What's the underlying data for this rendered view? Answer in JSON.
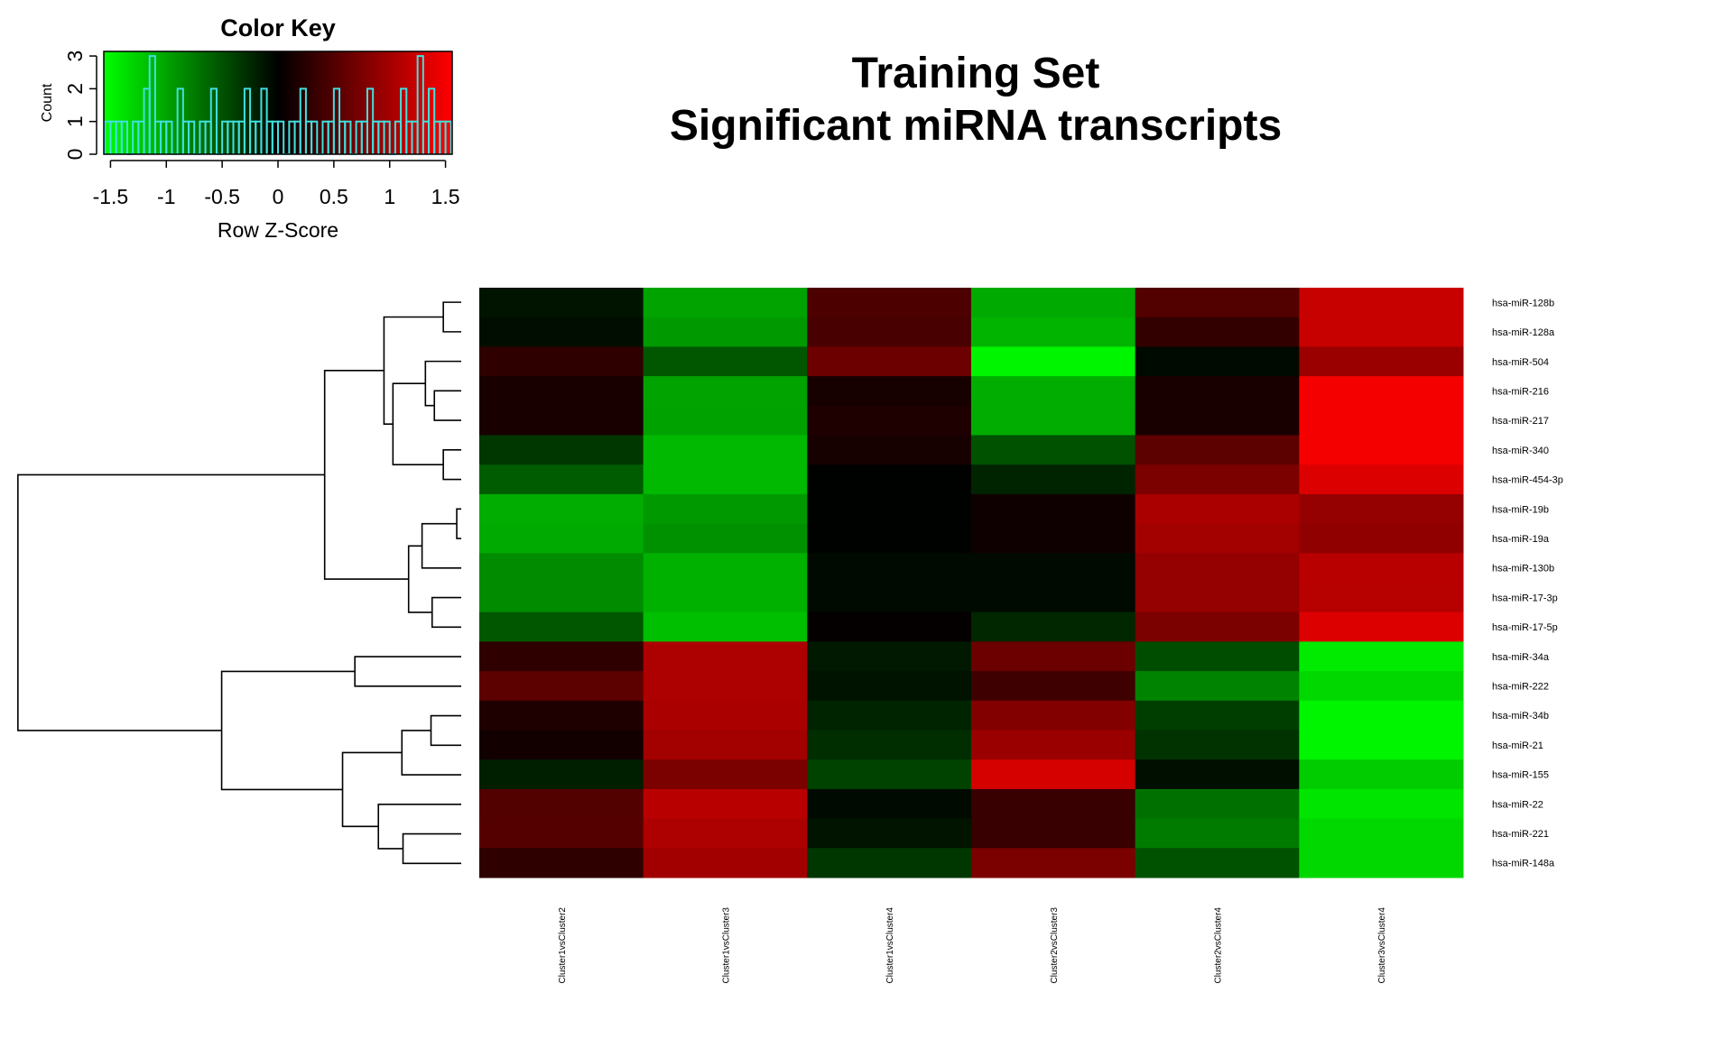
{
  "chart_data": {
    "type": "heatmap",
    "title": [
      "Training Set",
      "Significant miRNA transcripts"
    ],
    "rows": [
      "hsa-miR-128b",
      "hsa-miR-128a",
      "hsa-miR-504",
      "hsa-miR-216",
      "hsa-miR-217",
      "hsa-miR-340",
      "hsa-miR-454-3p",
      "hsa-miR-19b",
      "hsa-miR-19a",
      "hsa-miR-130b",
      "hsa-miR-17-3p",
      "hsa-miR-17-5p",
      "hsa-miR-34a",
      "hsa-miR-222",
      "hsa-miR-34b",
      "hsa-miR-21",
      "hsa-miR-155",
      "hsa-miR-22",
      "hsa-miR-221",
      "hsa-miR-148a"
    ],
    "columns": [
      "Cluster1vsCluster2",
      "Cluster1vsCluster3",
      "Cluster1vsCluster4",
      "Cluster2vsCluster3",
      "Cluster2vsCluster4",
      "Cluster3vsCluster4"
    ],
    "values": [
      [
        -0.12,
        -1.0,
        0.47,
        -1.04,
        0.5,
        1.22
      ],
      [
        -0.08,
        -0.94,
        0.44,
        -1.1,
        0.31,
        1.22
      ],
      [
        0.28,
        -0.53,
        0.66,
        -1.5,
        -0.06,
        0.94
      ],
      [
        0.15,
        -1.0,
        0.14,
        -1.06,
        0.15,
        1.5
      ],
      [
        0.15,
        -0.99,
        0.19,
        -1.06,
        0.15,
        1.5
      ],
      [
        -0.33,
        -1.13,
        0.14,
        -0.5,
        0.56,
        1.5
      ],
      [
        -0.56,
        -1.13,
        -0.01,
        -0.22,
        0.75,
        1.35
      ],
      [
        -1.06,
        -0.94,
        -0.01,
        0.09,
        1.04,
        0.91
      ],
      [
        -1.04,
        -0.89,
        -0.01,
        0.09,
        1.0,
        0.88
      ],
      [
        -0.85,
        -1.08,
        -0.06,
        -0.06,
        0.91,
        1.13
      ],
      [
        -0.85,
        -1.08,
        -0.06,
        -0.06,
        0.91,
        1.12
      ],
      [
        -0.53,
        -1.16,
        0.03,
        -0.24,
        0.75,
        1.35
      ],
      [
        0.28,
        1.06,
        -0.15,
        0.66,
        -0.47,
        -1.44
      ],
      [
        0.56,
        1.06,
        -0.11,
        0.38,
        -0.8,
        -1.32
      ],
      [
        0.19,
        1.04,
        -0.22,
        0.8,
        -0.38,
        -1.5
      ],
      [
        0.11,
        1.0,
        -0.28,
        0.94,
        -0.31,
        -1.5
      ],
      [
        -0.19,
        0.75,
        -0.41,
        1.3,
        -0.09,
        -1.25
      ],
      [
        0.5,
        1.13,
        -0.06,
        0.34,
        -0.69,
        -1.4
      ],
      [
        0.52,
        1.06,
        -0.12,
        0.34,
        -0.75,
        -1.32
      ],
      [
        0.28,
        0.99,
        -0.33,
        0.75,
        -0.5,
        -1.32
      ]
    ],
    "colors": {
      "low": "#00ff00",
      "mid": "#000000",
      "high": "#ff0000"
    },
    "color_key": {
      "title": "Color Key",
      "xlabel": "Row Z-Score",
      "ylabel": "Count",
      "xlim": [
        -1.56,
        1.56
      ],
      "xticks": [
        -1.5,
        -1,
        -0.5,
        0,
        0.5,
        1,
        1.5
      ],
      "ylim": [
        0,
        3.14
      ],
      "yticks": [
        0,
        1,
        2,
        3
      ],
      "hist_color": "#40e0e0",
      "bins": [
        -1.55,
        -1.5,
        -1.45,
        -1.4,
        -1.35,
        -1.3,
        -1.25,
        -1.2,
        -1.15,
        -1.1,
        -1.05,
        -1.0,
        -0.95,
        -0.9,
        -0.85,
        -0.8,
        -0.75,
        -0.7,
        -0.65,
        -0.6,
        -0.55,
        -0.5,
        -0.45,
        -0.4,
        -0.35,
        -0.3,
        -0.25,
        -0.2,
        -0.15,
        -0.1,
        -0.05,
        0,
        0.05,
        0.1,
        0.15,
        0.2,
        0.25,
        0.3,
        0.35,
        0.4,
        0.45,
        0.5,
        0.55,
        0.6,
        0.65,
        0.7,
        0.75,
        0.8,
        0.85,
        0.9,
        0.95,
        1.0,
        1.05,
        1.1,
        1.15,
        1.2,
        1.25,
        1.3,
        1.35,
        1.4,
        1.45,
        1.5,
        1.55
      ],
      "counts": [
        1,
        1,
        1,
        1,
        0,
        1,
        1,
        2,
        3,
        1,
        1,
        1,
        0,
        2,
        1,
        1,
        0,
        1,
        1,
        2,
        0,
        1,
        1,
        1,
        1,
        2,
        1,
        1,
        2,
        1,
        1,
        1,
        0,
        1,
        1,
        2,
        1,
        1,
        0,
        1,
        1,
        2,
        1,
        1,
        0,
        1,
        1,
        2,
        1,
        1,
        1,
        0,
        1,
        2,
        1,
        1,
        3,
        1,
        2,
        1,
        1,
        1
      ]
    }
  }
}
